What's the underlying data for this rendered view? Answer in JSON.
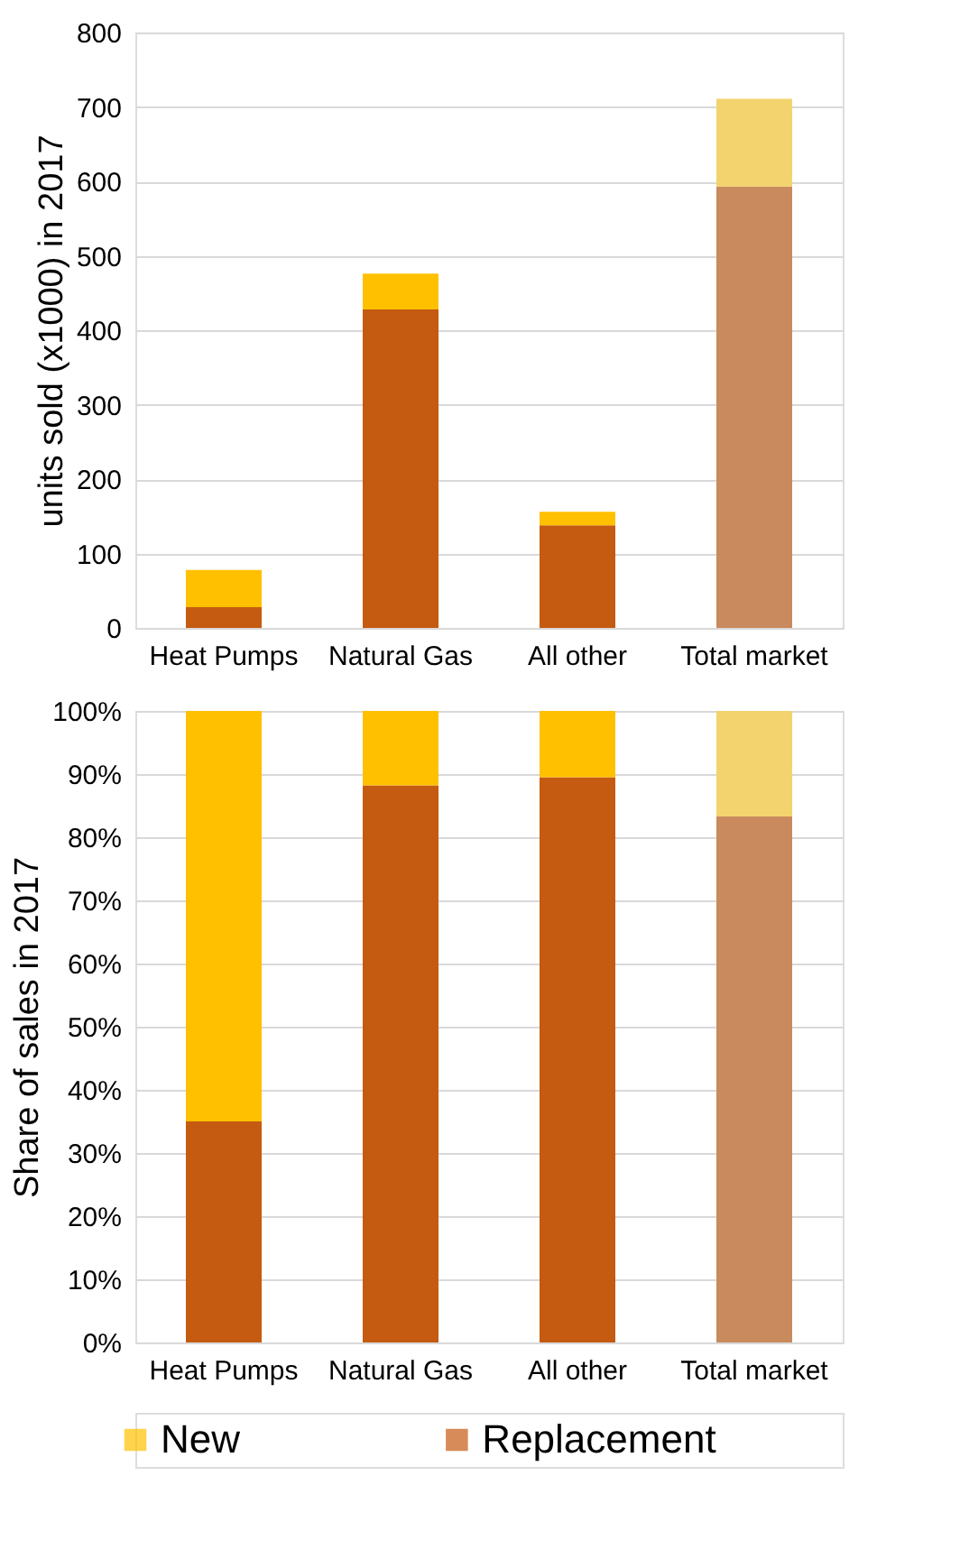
{
  "chart_data": [
    {
      "type": "bar",
      "stacked": true,
      "ylabel": "units sold (x1000) in 2017",
      "categories": [
        "Heat Pumps",
        "Natural Gas",
        "All other",
        "Total market"
      ],
      "series": [
        {
          "colors": [
            "#c55a11",
            "#c55a11",
            "#c55a11",
            "#c98a5e"
          ],
          "values": [
            28,
            428,
            138,
            593
          ]
        },
        {
          "colors": [
            "#ffc000",
            "#ffc000",
            "#ffc000",
            "#f3d36e"
          ],
          "values": [
            50,
            48,
            18,
            118
          ]
        }
      ],
      "ylim": [
        0,
        800
      ],
      "yticks": [
        0,
        100,
        200,
        300,
        400,
        500,
        600,
        700,
        800
      ],
      "grid": "y",
      "legend": false
    },
    {
      "type": "bar",
      "stacked": true,
      "ylabel": "Share of sales in 2017",
      "categories": [
        "Heat Pumps",
        "Natural Gas",
        "All other",
        "Total market"
      ],
      "series": [
        {
          "name": "Replacement",
          "color": "#c55a11",
          "colors": [
            "#c55a11",
            "#c55a11",
            "#c55a11",
            "#c98a5e"
          ],
          "values": [
            35,
            88.2,
            89.5,
            83.3
          ]
        },
        {
          "name": "New",
          "color": "#ffc000",
          "colors": [
            "#ffc000",
            "#ffc000",
            "#ffc000",
            "#f3d36e"
          ],
          "values": [
            65,
            11.8,
            10.5,
            16.7
          ]
        }
      ],
      "ylim": [
        0,
        100
      ],
      "yticks": [
        {
          "value": 0,
          "label": "0%"
        },
        {
          "value": 10,
          "label": "10%"
        },
        {
          "value": 20,
          "label": "20%"
        },
        {
          "value": 30,
          "label": "30%"
        },
        {
          "value": 40,
          "label": "40%"
        },
        {
          "value": 50,
          "label": "50%"
        },
        {
          "value": 60,
          "label": "60%"
        },
        {
          "value": 70,
          "label": "70%"
        },
        {
          "value": 80,
          "label": "80%"
        },
        {
          "value": 90,
          "label": "90%"
        },
        {
          "value": 100,
          "label": "100%"
        }
      ],
      "grid": "y",
      "legend": "bottom"
    }
  ]
}
